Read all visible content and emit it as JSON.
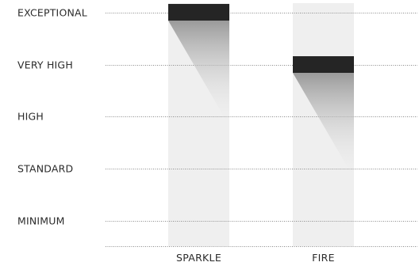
{
  "chart_data": {
    "type": "bar",
    "levels": [
      "MINIMUM",
      "STANDARD",
      "HIGH",
      "VERY HIGH",
      "EXCEPTIONAL"
    ],
    "categories": [
      "SPARKLE",
      "FIRE"
    ],
    "values": [
      "EXCEPTIONAL",
      "VERY HIGH"
    ],
    "grid": true,
    "legend": "none",
    "colors": {
      "column_background": "#efefef",
      "marker": "#252525",
      "shadow": "#9a9a9a",
      "grid": "#8a8a8a",
      "text": "#2b2b2b"
    }
  }
}
